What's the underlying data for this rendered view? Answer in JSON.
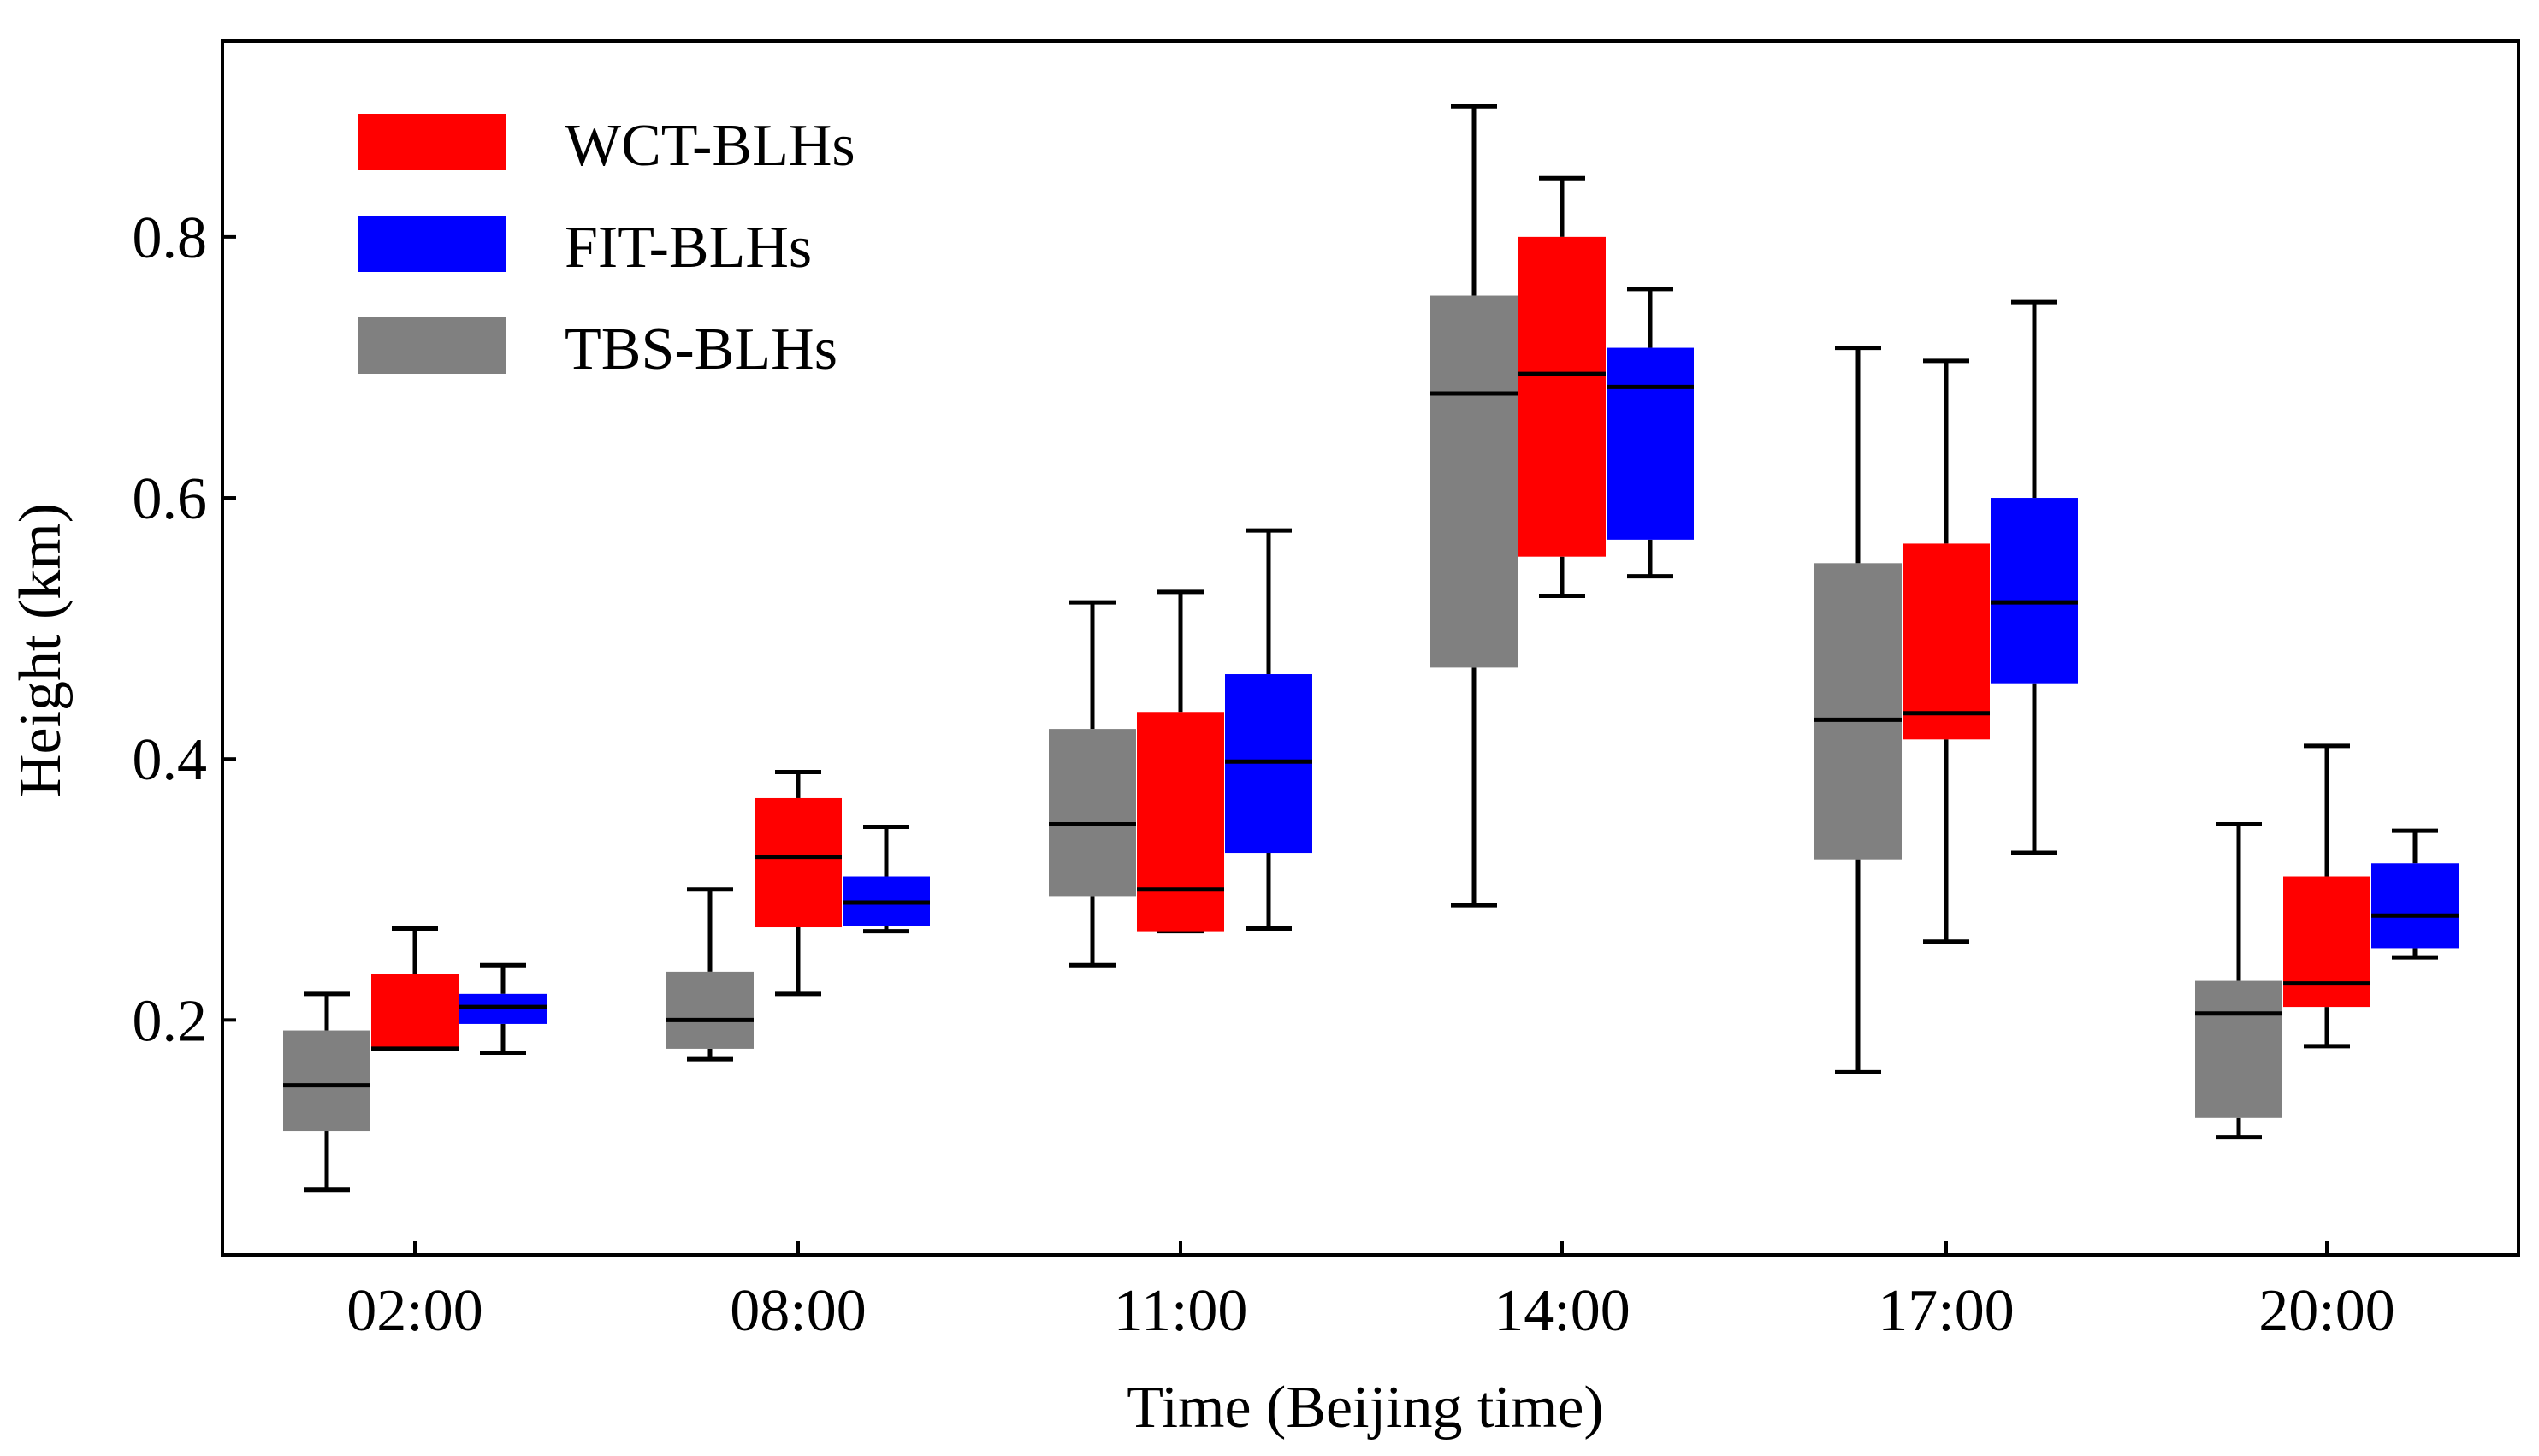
{
  "colors": {
    "WCT-BLHs": "#ff0000",
    "FIT-BLHs": "#0000ff",
    "TBS-BLHs": "#808080",
    "axis": "#000000",
    "median": "#000000"
  },
  "chart_data": {
    "type": "boxplot",
    "title": "",
    "xlabel": "Time (Beijing time)",
    "ylabel": "Height (km)",
    "ylim": [
      0.02,
      0.95
    ],
    "yticks": [
      0.2,
      0.4,
      0.6,
      0.8
    ],
    "ytick_labels": [
      "0.2",
      "0.4",
      "0.6",
      "0.8"
    ],
    "categories": [
      "02:00",
      "08:00",
      "11:00",
      "14:00",
      "17:00",
      "20:00"
    ],
    "legend": [
      {
        "name": "WCT-BLHs"
      },
      {
        "name": "FIT-BLHs"
      },
      {
        "name": "TBS-BLHs"
      }
    ],
    "legend_position": "top-left",
    "series_order": [
      "TBS-BLHs",
      "WCT-BLHs",
      "FIT-BLHs"
    ],
    "series": [
      {
        "name": "TBS-BLHs",
        "boxes": [
          {
            "whislo": 0.07,
            "q1": 0.115,
            "med": 0.15,
            "q3": 0.192,
            "whishi": 0.22
          },
          {
            "whislo": 0.17,
            "q1": 0.178,
            "med": 0.2,
            "q3": 0.237,
            "whishi": 0.3
          },
          {
            "whislo": 0.242,
            "q1": 0.295,
            "med": 0.35,
            "q3": 0.423,
            "whishi": 0.52
          },
          {
            "whislo": 0.288,
            "q1": 0.47,
            "med": 0.68,
            "q3": 0.755,
            "whishi": 0.9
          },
          {
            "whislo": 0.16,
            "q1": 0.323,
            "med": 0.43,
            "q3": 0.55,
            "whishi": 0.715
          },
          {
            "whislo": 0.11,
            "q1": 0.125,
            "med": 0.205,
            "q3": 0.23,
            "whishi": 0.35
          }
        ]
      },
      {
        "name": "WCT-BLHs",
        "boxes": [
          {
            "whislo": 0.178,
            "q1": 0.178,
            "med": 0.178,
            "q3": 0.235,
            "whishi": 0.27
          },
          {
            "whislo": 0.22,
            "q1": 0.271,
            "med": 0.325,
            "q3": 0.37,
            "whishi": 0.39
          },
          {
            "whislo": 0.268,
            "q1": 0.268,
            "med": 0.3,
            "q3": 0.436,
            "whishi": 0.528
          },
          {
            "whislo": 0.525,
            "q1": 0.555,
            "med": 0.695,
            "q3": 0.8,
            "whishi": 0.845
          },
          {
            "whislo": 0.26,
            "q1": 0.415,
            "med": 0.435,
            "q3": 0.565,
            "whishi": 0.705
          },
          {
            "whislo": 0.18,
            "q1": 0.21,
            "med": 0.228,
            "q3": 0.31,
            "whishi": 0.41
          }
        ]
      },
      {
        "name": "FIT-BLHs",
        "boxes": [
          {
            "whislo": 0.175,
            "q1": 0.197,
            "med": 0.21,
            "q3": 0.22,
            "whishi": 0.242
          },
          {
            "whislo": 0.268,
            "q1": 0.272,
            "med": 0.29,
            "q3": 0.31,
            "whishi": 0.348
          },
          {
            "whislo": 0.27,
            "q1": 0.328,
            "med": 0.398,
            "q3": 0.465,
            "whishi": 0.575
          },
          {
            "whislo": 0.54,
            "q1": 0.568,
            "med": 0.685,
            "q3": 0.715,
            "whishi": 0.76
          },
          {
            "whislo": 0.328,
            "q1": 0.458,
            "med": 0.52,
            "q3": 0.6,
            "whishi": 0.75
          },
          {
            "whislo": 0.248,
            "q1": 0.255,
            "med": 0.28,
            "q3": 0.32,
            "whishi": 0.345
          }
        ]
      }
    ]
  }
}
